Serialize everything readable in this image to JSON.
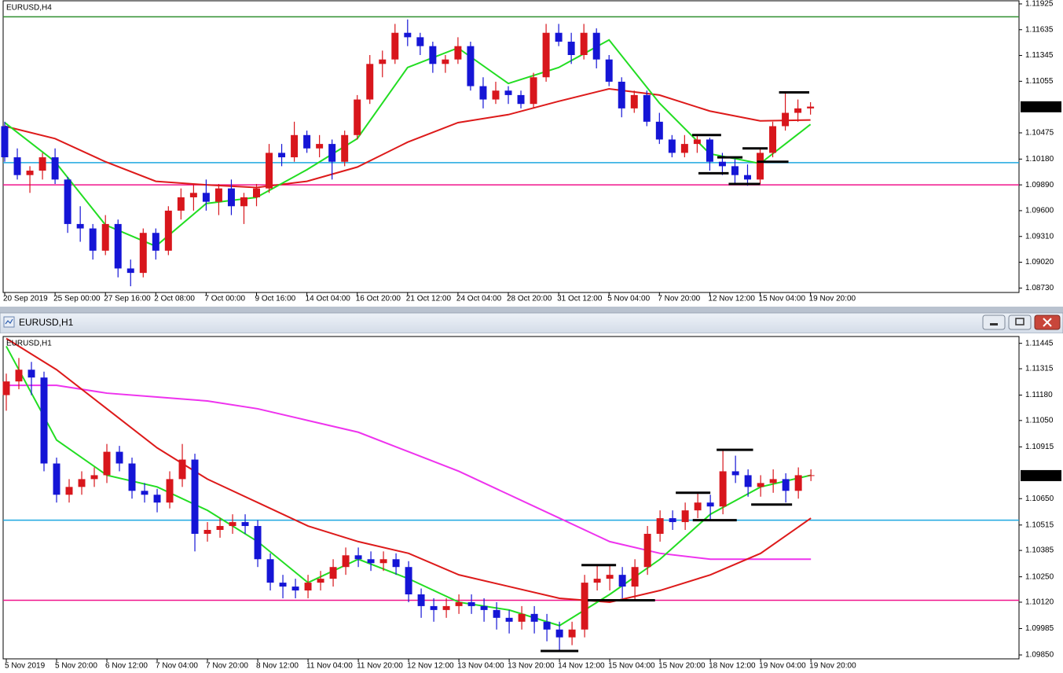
{
  "chart_data": [
    {
      "type": "candlestick",
      "title": "EURUSD,H4",
      "up_color": "#d8161c",
      "down_color": "#1515d6",
      "xlim": [
        -0.125,
        80.56
      ],
      "ylim": [
        1.0868,
        1.1196
      ],
      "xticks": [
        {
          "value": 0,
          "label": "20 Sep 2019"
        },
        {
          "value": 4,
          "label": "25 Sep 00:00"
        },
        {
          "value": 8,
          "label": "27 Sep 16:00"
        },
        {
          "value": 12,
          "label": "2 Oct 08:00"
        },
        {
          "value": 16,
          "label": "7 Oct 00:00"
        },
        {
          "value": 20,
          "label": "9 Oct 16:00"
        },
        {
          "value": 24,
          "label": "14 Oct 04:00"
        },
        {
          "value": 28,
          "label": "16 Oct 20:00"
        },
        {
          "value": 32,
          "label": "21 Oct 12:00"
        },
        {
          "value": 36,
          "label": "24 Oct 04:00"
        },
        {
          "value": 40,
          "label": "28 Oct 20:00"
        },
        {
          "value": 44,
          "label": "31 Oct 12:00"
        },
        {
          "value": 48,
          "label": "5 Nov 04:00"
        },
        {
          "value": 52,
          "label": "7 Nov 20:00"
        },
        {
          "value": 56,
          "label": "12 Nov 12:00"
        },
        {
          "value": 60,
          "label": "15 Nov 04:00"
        },
        {
          "value": 64,
          "label": "19 Nov 20:00"
        }
      ],
      "yticks": [
        1.11925,
        1.11635,
        1.11345,
        1.11055,
        1.10475,
        {
          "value": 1.1018,
          "label": "1.10180"
        },
        {
          "value": 1.0989,
          "label": "1.09890"
        },
        {
          "value": 1.096,
          "label": "1.09600"
        },
        {
          "value": 1.0931,
          "label": "1.09310"
        },
        {
          "value": 1.0902,
          "label": "1.09020"
        },
        {
          "value": 1.0873,
          "label": "1.08730"
        }
      ],
      "last_price": 1.10768,
      "open": [
        1.1055,
        1.102,
        1.1,
        1.1005,
        1.102,
        1.0995,
        1.0945,
        1.094,
        1.0915,
        1.0945,
        1.0895,
        1.089,
        1.0935,
        1.0915,
        1.096,
        1.0975,
        1.098,
        1.097,
        1.0985,
        1.0965,
        1.0975,
        1.0985,
        1.1025,
        1.102,
        1.1045,
        1.103,
        1.1035,
        1.1015,
        1.1045,
        1.1085,
        1.1125,
        1.113,
        1.116,
        1.1155,
        1.1145,
        1.1125,
        1.113,
        1.1145,
        1.11,
        1.1085,
        1.1095,
        1.109,
        1.108,
        1.111,
        1.116,
        1.115,
        1.1135,
        1.116,
        1.113,
        1.1105,
        1.1075,
        1.109,
        1.106,
        1.104,
        1.1025,
        1.1035,
        1.104,
        1.1015,
        1.101,
        1.1,
        1.0995,
        1.1025,
        1.1055,
        1.107,
        1.1075
      ],
      "high": [
        1.106,
        1.103,
        1.101,
        1.1025,
        1.103,
        1.0998,
        1.0965,
        1.0945,
        1.0955,
        1.095,
        1.0905,
        1.094,
        1.094,
        1.0965,
        1.0985,
        1.099,
        1.0995,
        1.099,
        1.0995,
        1.098,
        1.099,
        1.1035,
        1.1035,
        1.106,
        1.105,
        1.1045,
        1.104,
        1.105,
        1.109,
        1.1135,
        1.114,
        1.117,
        1.1175,
        1.116,
        1.115,
        1.1135,
        1.1155,
        1.115,
        1.111,
        1.1105,
        1.11,
        1.1095,
        1.1115,
        1.117,
        1.117,
        1.116,
        1.117,
        1.1165,
        1.1135,
        1.111,
        1.1095,
        1.1095,
        1.107,
        1.1045,
        1.1045,
        1.1045,
        1.1042,
        1.1025,
        1.1018,
        1.1012,
        1.103,
        1.106,
        1.1093,
        1.1085,
        1.1082
      ],
      "low": [
        1.1015,
        1.0995,
        1.098,
        1.0995,
        1.099,
        1.0935,
        1.0925,
        1.0905,
        1.091,
        1.0885,
        1.0875,
        1.0885,
        1.0905,
        1.091,
        1.095,
        1.096,
        1.096,
        1.0955,
        1.0955,
        1.0945,
        1.0965,
        1.098,
        1.101,
        1.1015,
        1.1025,
        1.102,
        1.0995,
        1.101,
        1.104,
        1.108,
        1.111,
        1.1125,
        1.1145,
        1.1135,
        1.1115,
        1.1115,
        1.1125,
        1.1095,
        1.1075,
        1.108,
        1.108,
        1.1075,
        1.1075,
        1.1105,
        1.1145,
        1.1125,
        1.113,
        1.112,
        1.11,
        1.1065,
        1.107,
        1.1055,
        1.1035,
        1.102,
        1.102,
        1.1025,
        1.1005,
        1.1,
        1.099,
        1.0988,
        1.099,
        1.102,
        1.105,
        1.106,
        1.1068
      ],
      "close": [
        1.102,
        1.1,
        1.1005,
        1.102,
        1.0995,
        1.0945,
        1.094,
        1.0915,
        1.0945,
        1.0895,
        1.089,
        1.0935,
        1.0915,
        1.096,
        1.0975,
        1.098,
        1.097,
        1.0985,
        1.0965,
        1.0975,
        1.0985,
        1.1025,
        1.102,
        1.1045,
        1.103,
        1.1035,
        1.1015,
        1.1045,
        1.1085,
        1.1125,
        1.113,
        1.116,
        1.1155,
        1.1145,
        1.1125,
        1.113,
        1.1145,
        1.11,
        1.1085,
        1.1095,
        1.109,
        1.108,
        1.111,
        1.116,
        1.115,
        1.1135,
        1.116,
        1.113,
        1.1105,
        1.1075,
        1.109,
        1.106,
        1.104,
        1.1025,
        1.1035,
        1.104,
        1.1015,
        1.101,
        1.1,
        1.0995,
        1.1025,
        1.1055,
        1.107,
        1.1075,
        1.1077
      ],
      "series": [
        {
          "color": "#dd1a1a",
          "x": [
            0,
            4,
            8,
            12,
            16,
            20,
            24,
            28,
            32,
            36,
            40,
            44,
            48,
            52,
            56,
            60,
            64
          ],
          "values": [
            1.1055,
            1.1041,
            1.1015,
            1.0993,
            1.0989,
            1.0986,
            1.0993,
            1.1009,
            1.1037,
            1.1059,
            1.1068,
            1.1083,
            1.1097,
            1.109,
            1.1072,
            1.1061,
            1.1062
          ]
        },
        {
          "color": "#22dd22",
          "x": [
            0,
            4,
            8,
            12,
            16,
            20,
            24,
            28,
            32,
            36,
            40,
            44,
            48,
            52,
            56,
            60,
            64
          ],
          "values": [
            1.1059,
            1.1015,
            1.0944,
            1.092,
            1.0968,
            1.0975,
            1.1006,
            1.1041,
            1.1121,
            1.1143,
            1.1103,
            1.1121,
            1.1152,
            1.1081,
            1.1024,
            1.1013,
            1.1057
          ]
        }
      ],
      "hlines": [
        {
          "value": 1.1178,
          "color": "#2f8f2f"
        },
        {
          "value": 1.1014,
          "color": "#1ea8e0"
        },
        {
          "value": 1.0989,
          "color": "#f0148c"
        }
      ],
      "levels": [
        {
          "value": 1.1045,
          "from": 54.6,
          "to": 56.9
        },
        {
          "value": 1.102,
          "from": 56.6,
          "to": 58.6
        },
        {
          "value": 1.1002,
          "from": 55.1,
          "to": 57.5
        },
        {
          "value": 1.099,
          "from": 57.5,
          "to": 60
        },
        {
          "value": 1.103,
          "from": 58.6,
          "to": 60.6
        },
        {
          "value": 1.1015,
          "from": 59.75,
          "to": 62.25
        },
        {
          "value": 1.1093,
          "from": 61.5,
          "to": 63.9
        }
      ]
    },
    {
      "type": "candlestick",
      "title": "EURUSD,H1",
      "window_title": "EURUSD,H1",
      "up_color": "#d8161c",
      "down_color": "#1515d6",
      "xlim": [
        -0.25,
        80.55
      ],
      "ylim": [
        1.0983,
        1.1148
      ],
      "xticks": [
        {
          "value": 0,
          "label": "5 Nov 2019"
        },
        {
          "value": 4,
          "label": "5 Nov 20:00"
        },
        {
          "value": 8,
          "label": "6 Nov 12:00"
        },
        {
          "value": 12,
          "label": "7 Nov 04:00"
        },
        {
          "value": 16,
          "label": "7 Nov 20:00"
        },
        {
          "value": 20,
          "label": "8 Nov 12:00"
        },
        {
          "value": 24,
          "label": "11 Nov 04:00"
        },
        {
          "value": 28,
          "label": "11 Nov 20:00"
        },
        {
          "value": 32,
          "label": "12 Nov 12:00"
        },
        {
          "value": 36,
          "label": "13 Nov 04:00"
        },
        {
          "value": 40,
          "label": "13 Nov 20:00"
        },
        {
          "value": 44,
          "label": "14 Nov 12:00"
        },
        {
          "value": 48,
          "label": "15 Nov 04:00"
        },
        {
          "value": 52,
          "label": "15 Nov 20:00"
        },
        {
          "value": 56,
          "label": "18 Nov 12:00"
        },
        {
          "value": 60,
          "label": "19 Nov 04:00"
        },
        {
          "value": 64,
          "label": "19 Nov 20:00"
        }
      ],
      "yticks": [
        1.11445,
        1.11315,
        {
          "value": 1.1118,
          "label": "1.11180"
        },
        {
          "value": 1.1105,
          "label": "1.11050"
        },
        1.10915,
        {
          "value": 1.1065,
          "label": "1.10650"
        },
        1.10515,
        1.10385,
        {
          "value": 1.1025,
          "label": "1.10250"
        },
        {
          "value": 1.1012,
          "label": "1.10120"
        },
        1.09985,
        {
          "value": 1.0985,
          "label": "1.09850"
        }
      ],
      "last_price": 1.10768,
      "open": [
        1.1118,
        1.1125,
        1.1131,
        1.1127,
        1.1083,
        1.1067,
        1.1071,
        1.1075,
        1.1077,
        1.1089,
        1.1083,
        1.1069,
        1.1067,
        1.1063,
        1.1075,
        1.1085,
        1.1047,
        1.1049,
        1.1051,
        1.1053,
        1.1051,
        1.1034,
        1.1022,
        1.102,
        1.1018,
        1.1022,
        1.1024,
        1.103,
        1.1036,
        1.1034,
        1.1032,
        1.1034,
        1.103,
        1.1016,
        1.101,
        1.1008,
        1.101,
        1.1012,
        1.101,
        1.1008,
        1.1004,
        1.1002,
        1.1006,
        1.1002,
        1.0998,
        1.0994,
        1.0998,
        1.1022,
        1.1024,
        1.1026,
        1.102,
        1.103,
        1.1047,
        1.1055,
        1.1053,
        1.1059,
        1.1063,
        1.1061,
        1.1079,
        1.1077,
        1.1071,
        1.1073,
        1.1075,
        1.1069,
        1.1077
      ],
      "high": [
        1.1129,
        1.1137,
        1.1135,
        1.113,
        1.1086,
        1.1075,
        1.1079,
        1.1081,
        1.1093,
        1.1092,
        1.1086,
        1.1073,
        1.107,
        1.1079,
        1.1093,
        1.1088,
        1.1053,
        1.1055,
        1.1057,
        1.1057,
        1.1054,
        1.1037,
        1.1026,
        1.1024,
        1.1026,
        1.1028,
        1.1034,
        1.104,
        1.104,
        1.1038,
        1.1038,
        1.1037,
        1.1033,
        1.1019,
        1.1014,
        1.1014,
        1.1016,
        1.1016,
        1.1014,
        1.1012,
        1.1008,
        1.101,
        1.101,
        1.1006,
        1.1002,
        1.1002,
        1.1026,
        1.1031,
        1.1031,
        1.103,
        1.1034,
        1.1051,
        1.1059,
        1.1059,
        1.1063,
        1.1068,
        1.1067,
        1.109,
        1.1087,
        1.108,
        1.1077,
        1.108,
        1.1078,
        1.1081,
        1.108
      ],
      "low": [
        1.111,
        1.1121,
        1.1118,
        1.1079,
        1.1063,
        1.1063,
        1.1067,
        1.1071,
        1.1073,
        1.1079,
        1.1065,
        1.1063,
        1.1058,
        1.106,
        1.1071,
        1.1038,
        1.1043,
        1.1045,
        1.1047,
        1.1047,
        1.103,
        1.1018,
        1.1014,
        1.1014,
        1.1014,
        1.1018,
        1.102,
        1.1026,
        1.103,
        1.1028,
        1.1028,
        1.1026,
        1.1012,
        1.1004,
        1.1002,
        1.1004,
        1.1006,
        1.1006,
        1.1002,
        1.0998,
        1.0996,
        1.0998,
        1.0996,
        1.0992,
        1.0987,
        1.099,
        1.0994,
        1.1018,
        1.1018,
        1.1014,
        1.1013,
        1.1026,
        1.1043,
        1.1049,
        1.1049,
        1.1055,
        1.1054,
        1.1057,
        1.1073,
        1.1066,
        1.1066,
        1.1068,
        1.1063,
        1.1065,
        1.1074
      ],
      "close": [
        1.1125,
        1.1131,
        1.1127,
        1.1083,
        1.1067,
        1.1071,
        1.1075,
        1.1077,
        1.1089,
        1.1083,
        1.1069,
        1.1067,
        1.1063,
        1.1075,
        1.1085,
        1.1047,
        1.1049,
        1.1051,
        1.1053,
        1.1051,
        1.1034,
        1.1022,
        1.102,
        1.1018,
        1.1022,
        1.1024,
        1.103,
        1.1036,
        1.1034,
        1.1032,
        1.1034,
        1.103,
        1.1016,
        1.101,
        1.1008,
        1.101,
        1.1012,
        1.101,
        1.1008,
        1.1004,
        1.1002,
        1.1006,
        1.1002,
        1.0998,
        1.0994,
        1.0998,
        1.1022,
        1.1024,
        1.1026,
        1.102,
        1.103,
        1.1047,
        1.1055,
        1.1053,
        1.1059,
        1.1063,
        1.1061,
        1.1079,
        1.1077,
        1.1071,
        1.1073,
        1.1075,
        1.1069,
        1.1077,
        1.1077
      ],
      "series": [
        {
          "color": "#ee33ee",
          "x": [
            0,
            4,
            8,
            12,
            16,
            20,
            24,
            28,
            32,
            36,
            40,
            44,
            48,
            52,
            56,
            60,
            64
          ],
          "values": [
            1.1123,
            1.1123,
            1.1119,
            1.1117,
            1.1115,
            1.1111,
            1.1105,
            1.1099,
            1.1089,
            1.1079,
            1.1067,
            1.1055,
            1.1043,
            1.1037,
            1.1034,
            1.1034,
            1.1034
          ]
        },
        {
          "color": "#dd1a1a",
          "x": [
            0,
            4,
            8,
            12,
            16,
            20,
            24,
            28,
            32,
            36,
            40,
            44,
            48,
            52,
            56,
            60,
            64
          ],
          "values": [
            1.1147,
            1.1131,
            1.1111,
            1.1091,
            1.1075,
            1.1063,
            1.1051,
            1.1043,
            1.1037,
            1.1026,
            1.102,
            1.1014,
            1.1012,
            1.1018,
            1.1026,
            1.1037,
            1.1055
          ]
        },
        {
          "color": "#22dd22",
          "x": [
            0,
            4,
            8,
            12,
            16,
            20,
            24,
            28,
            32,
            36,
            40,
            44,
            48,
            52,
            56,
            60,
            64
          ],
          "values": [
            1.1143,
            1.1095,
            1.1077,
            1.1071,
            1.1059,
            1.1043,
            1.1022,
            1.1034,
            1.1024,
            1.1012,
            1.1008,
            1.1,
            1.1016,
            1.1034,
            1.1057,
            1.1071,
            1.1077
          ]
        }
      ],
      "hlines": [
        {
          "value": 1.1054,
          "color": "#1ea8e0"
        },
        {
          "value": 1.1013,
          "color": "#f0148c"
        }
      ],
      "levels": [
        {
          "value": 1.0987,
          "from": 42.5,
          "to": 45.5
        },
        {
          "value": 1.1031,
          "from": 45.75,
          "to": 48.5
        },
        {
          "value": 1.1013,
          "from": 46.25,
          "to": 51.6
        },
        {
          "value": 1.1068,
          "from": 53.25,
          "to": 56
        },
        {
          "value": 1.1054,
          "from": 54.6,
          "to": 58.1
        },
        {
          "value": 1.109,
          "from": 56.5,
          "to": 59.4
        },
        {
          "value": 1.1062,
          "from": 59.25,
          "to": 62.5
        }
      ]
    }
  ]
}
